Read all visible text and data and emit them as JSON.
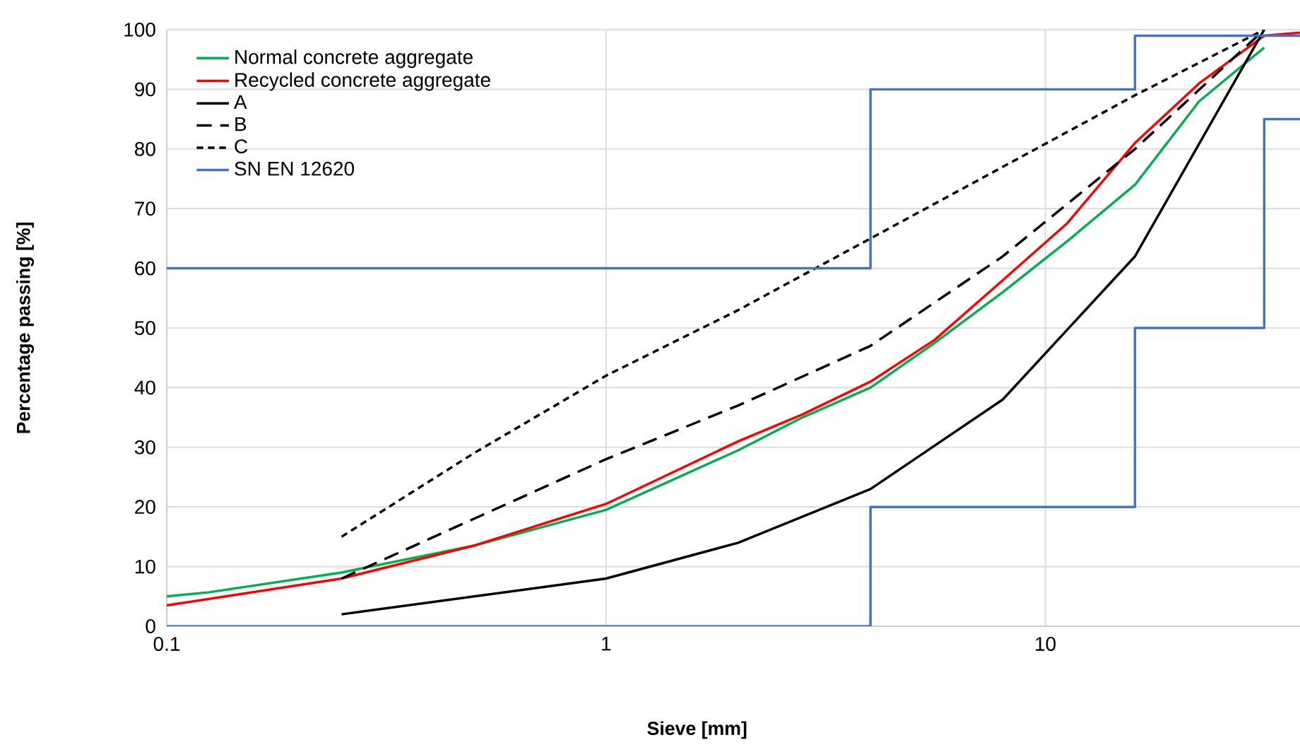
{
  "chart_data": {
    "type": "line",
    "xlabel": "Sieve [mm]",
    "ylabel": "Percentage passing [%]",
    "log": "x",
    "grid": true,
    "legend": "top left",
    "xlim": [
      0.1,
      38
    ],
    "xticks": [
      0.1,
      1,
      10
    ],
    "ylim": [
      0,
      100
    ],
    "yticks": [
      0,
      10,
      20,
      30,
      40,
      50,
      60,
      70,
      80,
      90,
      100
    ],
    "series": [
      {
        "name": "Normal concrete aggregate",
        "color": "#00b050",
        "line_style": "solid",
        "x": [
          0.1,
          0.125,
          0.25,
          0.5,
          1,
          2,
          2.8,
          4,
          5.6,
          8,
          11.2,
          16,
          22.4,
          31.5
        ],
        "values": [
          5,
          5.7,
          9,
          13.5,
          19.5,
          29.5,
          35,
          40,
          47.5,
          56,
          64.5,
          74,
          88,
          97
        ]
      },
      {
        "name": "Recycled concrete aggregate",
        "color": "#ff0000",
        "line_style": "solid",
        "x": [
          0.1,
          0.25,
          0.5,
          1,
          2,
          2.8,
          4,
          5.6,
          8,
          11.2,
          16,
          22.4,
          31.5,
          38
        ],
        "values": [
          3.5,
          8,
          13.5,
          20.5,
          31,
          35.5,
          41,
          48,
          58,
          67.5,
          81,
          91,
          99,
          99.5
        ]
      },
      {
        "name": "A",
        "color": "#000000",
        "line_style": "solid",
        "x": [
          0.25,
          1,
          2,
          4,
          8,
          16,
          31.5
        ],
        "values": [
          2,
          8,
          14,
          23,
          38,
          62,
          100
        ]
      },
      {
        "name": "B",
        "color": "#000000",
        "line_style": "dashed",
        "x": [
          0.25,
          1,
          2,
          4,
          8,
          16,
          31.5
        ],
        "values": [
          8,
          28,
          37,
          47,
          62,
          80,
          100
        ]
      },
      {
        "name": "C",
        "color": "#000000",
        "line_style": "dotted",
        "x": [
          0.25,
          0.5,
          1,
          2,
          4,
          8,
          16,
          31.5
        ],
        "values": [
          15,
          29,
          42,
          53,
          65,
          77,
          89,
          100
        ]
      },
      {
        "name": "SN EN 12620",
        "color": "#4472c4",
        "line_style": "solid",
        "x": [
          0.1,
          4,
          4,
          16,
          16,
          31.5,
          38
        ],
        "values": [
          60,
          60,
          90,
          90,
          99,
          99,
          99
        ]
      },
      {
        "color": "#4472c4",
        "line_style": "solid",
        "x": [
          0.1,
          4,
          4,
          16,
          16,
          31.5,
          31.5,
          38
        ],
        "values": [
          0,
          0,
          20,
          20,
          50,
          50,
          85,
          85
        ]
      }
    ]
  }
}
